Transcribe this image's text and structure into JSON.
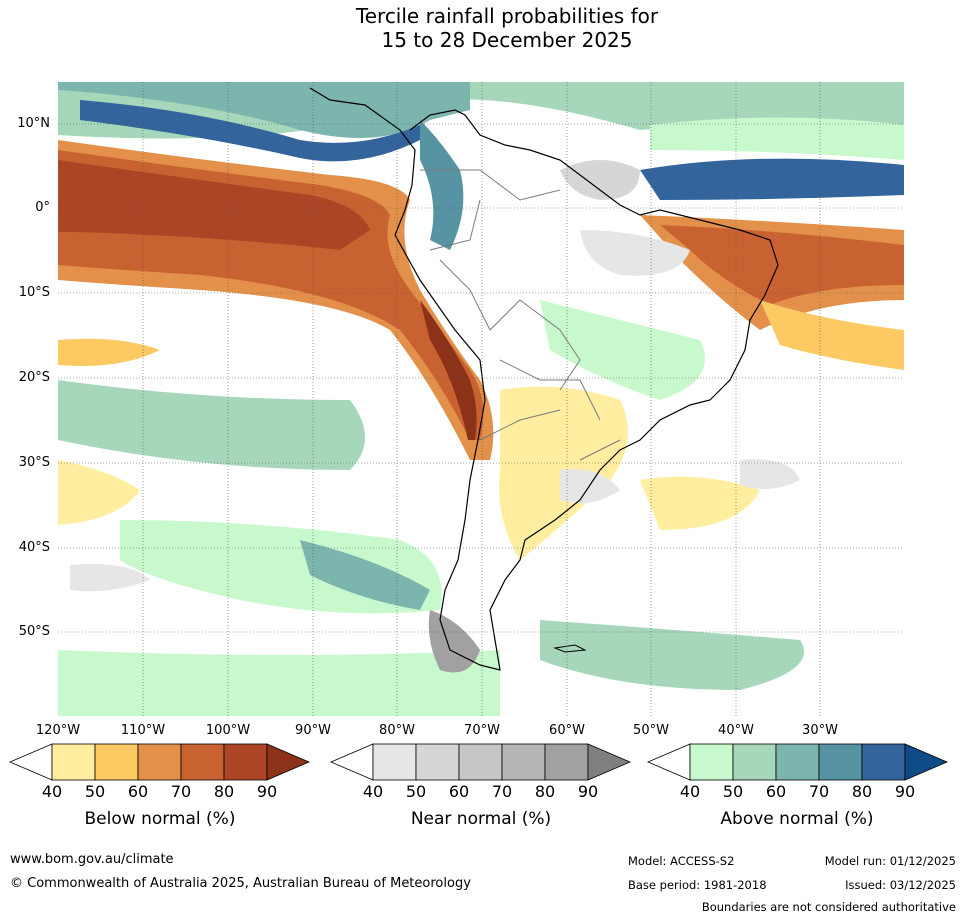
{
  "title": {
    "line1": "Tercile rainfall probabilities for",
    "line2": "15 to 28 December 2025"
  },
  "map": {
    "latitude_labels": [
      "10°N",
      "0°",
      "10°S",
      "20°S",
      "30°S",
      "40°S",
      "50°S"
    ],
    "longitude_labels": [
      "120°W",
      "110°W",
      "100°W",
      "90°W",
      "80°W",
      "70°W",
      "60°W",
      "50°W",
      "40°W",
      "30°W"
    ]
  },
  "colorbars": [
    {
      "id": "below",
      "title": "Below normal (%)",
      "ticks": [
        "40",
        "50",
        "60",
        "70",
        "80",
        "90"
      ],
      "colors": [
        "#ffffff",
        "#ffeea0",
        "#fdc962",
        "#e3914a",
        "#c96231",
        "#ac4525",
        "#8b3218"
      ]
    },
    {
      "id": "near",
      "title": "Near normal (%)",
      "ticks": [
        "40",
        "50",
        "60",
        "70",
        "80",
        "90"
      ],
      "colors": [
        "#ffffff",
        "#e6e6e6",
        "#d6d6d6",
        "#c6c6c6",
        "#b5b5b5",
        "#a1a1a1",
        "#7f7f7f"
      ]
    },
    {
      "id": "above",
      "title": "Above normal (%)",
      "ticks": [
        "40",
        "50",
        "60",
        "70",
        "80",
        "90"
      ],
      "colors": [
        "#ffffff",
        "#c8f9cd",
        "#a6d7bb",
        "#7cb4ae",
        "#5694a4",
        "#33659c",
        "#0e4b87"
      ]
    }
  ],
  "footer": {
    "website": "www.bom.gov.au/climate",
    "copyright": "© Commonwealth of Australia 2025, Australian Bureau of Meteorology",
    "model": "Model: ACCESS-S2",
    "model_run": "Model run: 01/12/2025",
    "base_period": "Base period: 1981-2018",
    "issued": "Issued: 03/12/2025",
    "disclaimer": "Boundaries are not considered authoritative"
  }
}
